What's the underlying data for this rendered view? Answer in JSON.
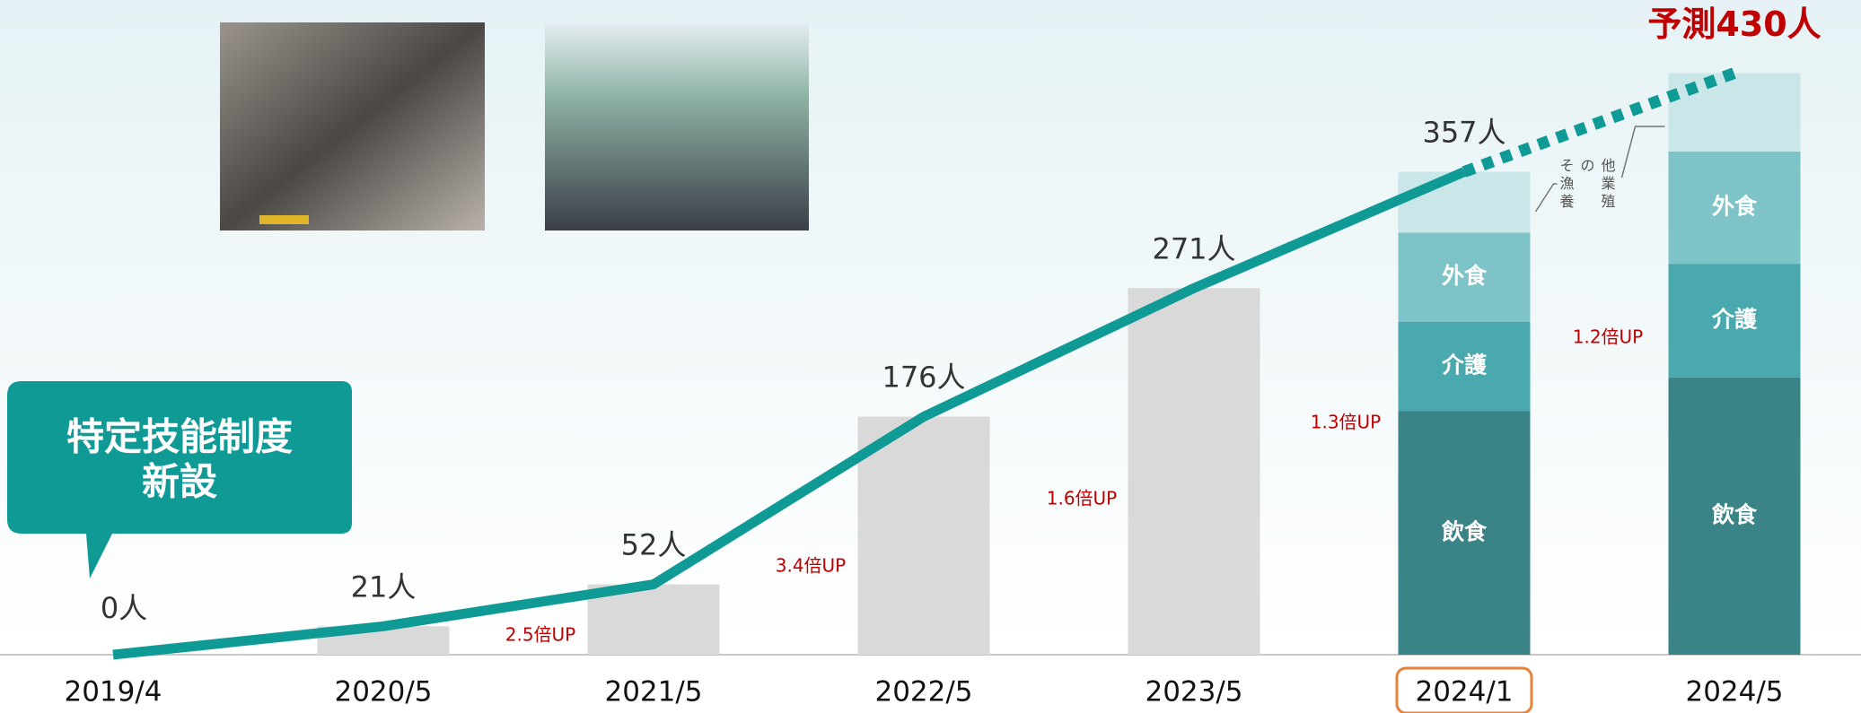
{
  "chart_data": {
    "type": "bar",
    "categories": [
      "2019/4",
      "2020/5",
      "2021/5",
      "2022/5",
      "2023/5",
      "2024/1",
      "2024/5"
    ],
    "ylim": [
      0,
      484
    ],
    "series": [
      {
        "color": "#d9d9d9",
        "values": [
          0,
          21,
          52,
          176,
          271,
          null,
          null
        ]
      },
      {
        "name": "飲食",
        "color": "#3a8387",
        "stack": true,
        "values": [
          null,
          null,
          null,
          null,
          null,
          180,
          205
        ]
      },
      {
        "name": "介護",
        "color": "#4aa9ae",
        "stack": true,
        "values": [
          null,
          null,
          null,
          null,
          null,
          66,
          84
        ]
      },
      {
        "name": "外食",
        "color": "#7dc3c8",
        "stack": true,
        "values": [
          null,
          null,
          null,
          null,
          null,
          66,
          83
        ]
      },
      {
        "name": "その他\n漁業\n養殖",
        "color": "#c9e6e9",
        "stack": true,
        "values": [
          null,
          null,
          null,
          null,
          null,
          45,
          58
        ]
      },
      {
        "type": "line",
        "color": "#0f9a96",
        "values": [
          0,
          21,
          52,
          176,
          271,
          357,
          null
        ],
        "value_labels": [
          "0人",
          "21人",
          "52人",
          "176人",
          "271人",
          "357人",
          null
        ]
      },
      {
        "type": "line",
        "color": "#0f9a96",
        "dashed": true,
        "values": [
          null,
          null,
          null,
          null,
          null,
          357,
          430
        ],
        "value_labels": [
          null,
          null,
          null,
          null,
          null,
          null,
          "予測430人"
        ]
      }
    ],
    "annotations": [
      "2.5倍UP",
      "3.4倍UP",
      "1.6倍UP",
      "1.3倍UP",
      "1.2倍UP"
    ],
    "callout": [
      "特定技能制度",
      "新設"
    ]
  }
}
